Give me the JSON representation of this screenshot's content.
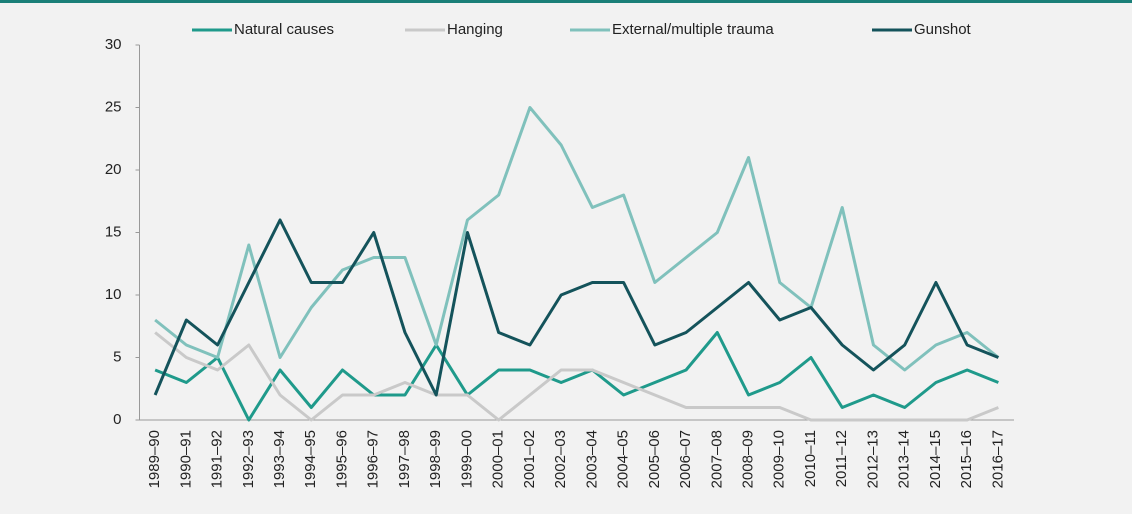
{
  "chart_data": {
    "type": "line",
    "categories": [
      "1989–90",
      "1990–91",
      "1991–92",
      "1992–93",
      "1993–94",
      "1994–95",
      "1995–96",
      "1996–97",
      "1997–98",
      "1998–99",
      "1999–00",
      "2000–01",
      "2001–02",
      "2002–03",
      "2003–04",
      "2004–05",
      "2005–06",
      "2006–07",
      "2007–08",
      "2008–09",
      "2009–10",
      "2010–11",
      "2011–12",
      "2012–13",
      "2013–14",
      "2014–15",
      "2015–16",
      "2016–17"
    ],
    "series": [
      {
        "name": "Natural causes",
        "color": "#1f9a8b",
        "values": [
          4,
          3,
          5,
          0,
          4,
          1,
          4,
          2,
          2,
          6,
          2,
          4,
          4,
          3,
          4,
          2,
          3,
          4,
          7,
          2,
          3,
          5,
          1,
          2,
          1,
          3,
          4,
          3
        ]
      },
      {
        "name": "Hanging",
        "color": "#c9c9c9",
        "values": [
          7,
          5,
          4,
          6,
          2,
          0,
          2,
          2,
          3,
          2,
          2,
          0,
          2,
          4,
          4,
          3,
          2,
          1,
          1,
          1,
          1,
          0,
          0,
          0,
          0,
          0,
          0,
          1
        ]
      },
      {
        "name": "External/multiple trauma",
        "color": "#80c1bc",
        "values": [
          8,
          6,
          5,
          14,
          5,
          9,
          12,
          13,
          13,
          6,
          16,
          18,
          25,
          22,
          17,
          18,
          11,
          13,
          15,
          21,
          11,
          9,
          17,
          6,
          4,
          6,
          7,
          5
        ]
      },
      {
        "name": "Gunshot",
        "color": "#14535b",
        "values": [
          2,
          8,
          6,
          11,
          16,
          11,
          11,
          15,
          7,
          2,
          15,
          7,
          6,
          10,
          11,
          11,
          6,
          7,
          9,
          11,
          8,
          9,
          6,
          4,
          6,
          11,
          6,
          5
        ]
      }
    ],
    "ylim": [
      0,
      30
    ],
    "yticks": [
      0,
      5,
      10,
      15,
      20,
      25,
      30
    ],
    "grid": false,
    "legend": "top"
  }
}
